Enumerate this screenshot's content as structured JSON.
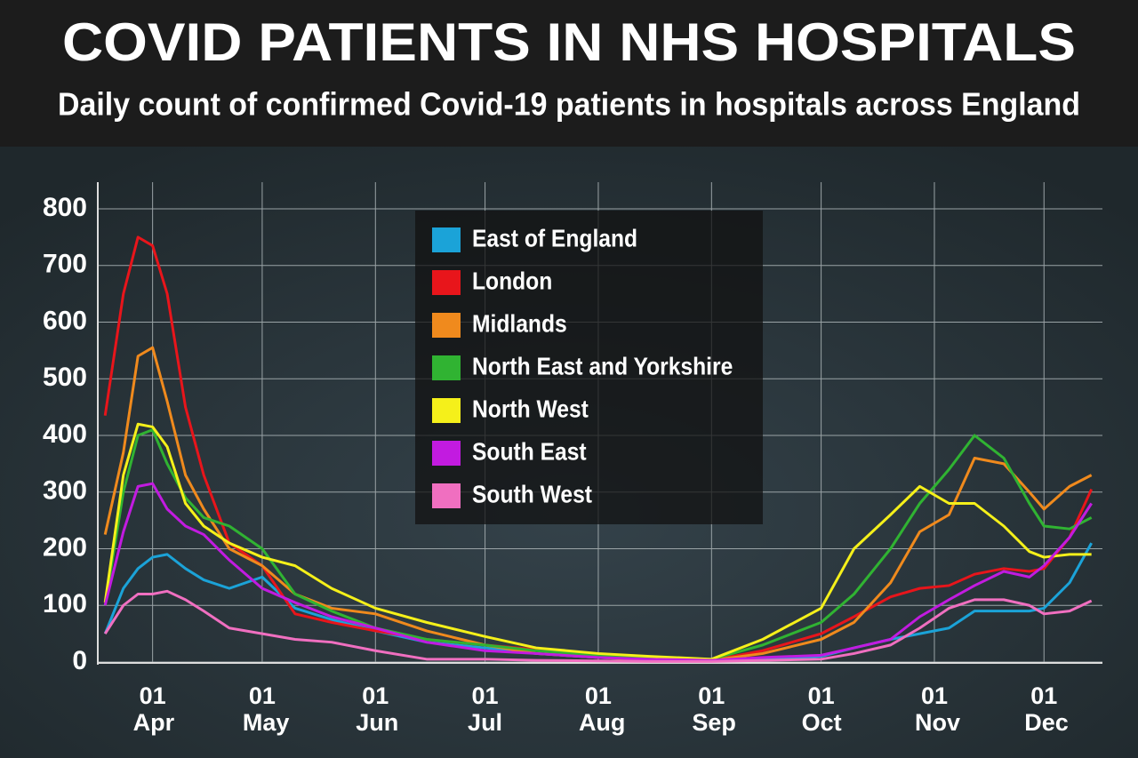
{
  "chart_data": {
    "type": "line",
    "title": "COVID PATIENTS IN NHS HOSPITALS",
    "subtitle": "Daily count of confirmed Covid-19 patients in hospitals across England",
    "x": [
      "19 Mar",
      "24 Mar",
      "28 Mar",
      "01 Apr",
      "05 Apr",
      "10 Apr",
      "15 Apr",
      "22 Apr",
      "01 May",
      "10 May",
      "20 May",
      "01 Jun",
      "15 Jun",
      "01 Jul",
      "15 Jul",
      "01 Aug",
      "15 Aug",
      "01 Sep",
      "15 Sep",
      "01 Oct",
      "10 Oct",
      "20 Oct",
      "28 Oct",
      "05 Nov",
      "12 Nov",
      "20 Nov",
      "27 Nov",
      "01 Dec",
      "08 Dec",
      "14 Dec"
    ],
    "series": [
      {
        "name": "East of England",
        "color": "#1ba3d8",
        "values": [
          50,
          130,
          165,
          185,
          190,
          165,
          145,
          130,
          150,
          95,
          75,
          55,
          35,
          25,
          15,
          8,
          4,
          2,
          5,
          10,
          25,
          40,
          50,
          60,
          90,
          90,
          90,
          95,
          140,
          210
        ]
      },
      {
        "name": "London",
        "color": "#e8151b",
        "values": [
          435,
          650,
          750,
          735,
          650,
          450,
          330,
          210,
          170,
          85,
          70,
          55,
          40,
          30,
          22,
          10,
          5,
          3,
          20,
          50,
          80,
          115,
          130,
          135,
          155,
          165,
          160,
          165,
          220,
          305
        ]
      },
      {
        "name": "Midlands",
        "color": "#f08a1d",
        "values": [
          225,
          370,
          540,
          555,
          460,
          330,
          270,
          200,
          170,
          120,
          95,
          85,
          55,
          30,
          15,
          8,
          4,
          3,
          15,
          40,
          70,
          140,
          230,
          260,
          360,
          350,
          300,
          270,
          310,
          330
        ]
      },
      {
        "name": "North East and Yorkshire",
        "color": "#30b332",
        "values": [
          100,
          300,
          400,
          410,
          350,
          290,
          255,
          240,
          200,
          120,
          90,
          60,
          40,
          30,
          20,
          12,
          8,
          5,
          30,
          70,
          120,
          200,
          280,
          340,
          400,
          360,
          280,
          240,
          235,
          255
        ]
      },
      {
        "name": "North West",
        "color": "#f5f01a",
        "values": [
          105,
          330,
          420,
          415,
          380,
          280,
          240,
          210,
          185,
          170,
          130,
          95,
          70,
          45,
          25,
          15,
          10,
          5,
          40,
          95,
          200,
          260,
          310,
          280,
          280,
          240,
          195,
          185,
          190,
          190
        ]
      },
      {
        "name": "South East",
        "color": "#c21be0",
        "values": [
          100,
          230,
          310,
          315,
          270,
          240,
          225,
          180,
          130,
          105,
          80,
          60,
          35,
          20,
          15,
          8,
          5,
          3,
          8,
          12,
          25,
          40,
          80,
          110,
          135,
          160,
          150,
          170,
          220,
          280
        ]
      },
      {
        "name": "South West",
        "color": "#f06fc0",
        "values": [
          50,
          100,
          120,
          120,
          125,
          110,
          90,
          60,
          50,
          40,
          35,
          20,
          5,
          5,
          3,
          2,
          1,
          1,
          3,
          5,
          15,
          30,
          60,
          95,
          110,
          110,
          100,
          85,
          90,
          108
        ]
      }
    ],
    "xlim": [
      "17 Mar",
      "17 Dec"
    ],
    "xticks": [
      "01 Apr",
      "01 May",
      "01 Jun",
      "01 Jul",
      "01 Aug",
      "01 Sep",
      "01 Oct",
      "01 Nov",
      "01 Dec"
    ],
    "ylim": [
      0,
      800
    ],
    "yticks": [
      0,
      100,
      200,
      300,
      400,
      500,
      600,
      700,
      800
    ],
    "grid": true,
    "legend": "top"
  }
}
